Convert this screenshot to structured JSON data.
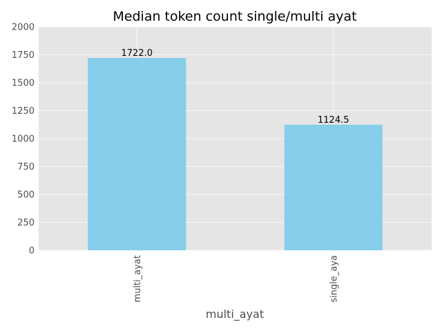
{
  "chart_data": {
    "type": "bar",
    "title": "Median token count single/multi ayat",
    "xlabel": "multi_ayat",
    "ylabel": "",
    "categories": [
      "multi_ayat",
      "single_aya"
    ],
    "values": [
      1722.0,
      1124.5
    ],
    "data_labels": [
      "1722.0",
      "1124.5"
    ],
    "ylim": [
      0,
      2000
    ],
    "yticks": [
      0,
      250,
      500,
      750,
      1000,
      1250,
      1500,
      1750,
      2000
    ],
    "ytick_labels": [
      "0",
      "250",
      "500",
      "750",
      "1000",
      "1250",
      "1500",
      "1750",
      "2000"
    ],
    "grid": true,
    "legend": "none",
    "colors": {
      "bar": "#87ceeb",
      "plot_background": "#e5e5e5",
      "grid": "#ffffff",
      "tick_text": "#4d4d4d",
      "title_text": "#000000"
    }
  }
}
